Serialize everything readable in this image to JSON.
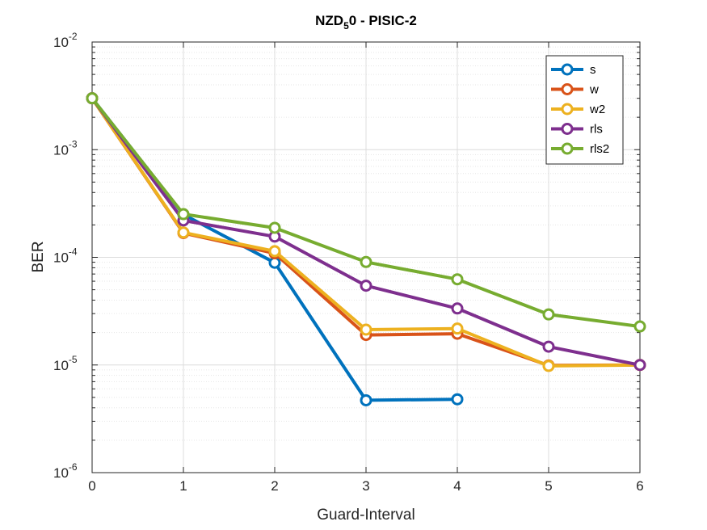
{
  "chart_data": {
    "type": "line",
    "title": {
      "main": "NZD",
      "sub": "5",
      "rest": "0 - PISIC-2"
    },
    "xlabel": "Guard-Interval",
    "ylabel": "BER",
    "xlim": [
      0,
      6
    ],
    "ylim": [
      1e-06,
      0.01
    ],
    "yscale": "log",
    "grid": true,
    "minor_grid": true,
    "legend_position": "top-right",
    "x_ticks": [
      0,
      1,
      2,
      3,
      4,
      5,
      6
    ],
    "x_tick_labels": [
      "0",
      "1",
      "2",
      "3",
      "4",
      "5",
      "6"
    ],
    "y_ticks": [
      {
        "value": 0.01,
        "base": "10",
        "exp": "-2"
      },
      {
        "value": 0.001,
        "base": "10",
        "exp": "-3"
      },
      {
        "value": 0.0001,
        "base": "10",
        "exp": "-4"
      },
      {
        "value": 1e-05,
        "base": "10",
        "exp": "-5"
      },
      {
        "value": 1e-06,
        "base": "10",
        "exp": "-6"
      }
    ],
    "series": [
      {
        "name": "s",
        "color": "#0072BD",
        "x": [
          0,
          1,
          2,
          3,
          4
        ],
        "y": [
          0.003,
          0.00025,
          8.9e-05,
          4.7e-06,
          4.8e-06
        ]
      },
      {
        "name": "w",
        "color": "#D95319",
        "x": [
          0,
          1,
          2,
          3,
          4,
          5,
          6
        ],
        "y": [
          0.003,
          0.000168,
          0.000109,
          1.9e-05,
          1.95e-05,
          9.9e-06,
          1e-05
        ]
      },
      {
        "name": "w2",
        "color": "#EDB120",
        "x": [
          0,
          1,
          2,
          3,
          4,
          5,
          6
        ],
        "y": [
          0.003,
          0.00017,
          0.000114,
          2.13e-05,
          2.18e-05,
          9.8e-06,
          1e-05
        ]
      },
      {
        "name": "rls",
        "color": "#7E2F8E",
        "x": [
          0,
          1,
          2,
          3,
          4,
          5,
          6
        ],
        "y": [
          0.003,
          0.00022,
          0.000156,
          5.45e-05,
          3.35e-05,
          1.48e-05,
          1e-05
        ]
      },
      {
        "name": "rls2",
        "color": "#77AC30",
        "x": [
          0,
          1,
          2,
          3,
          4,
          5,
          6
        ],
        "y": [
          0.003,
          0.000252,
          0.000188,
          9.05e-05,
          6.25e-05,
          2.95e-05,
          2.28e-05
        ]
      }
    ]
  }
}
